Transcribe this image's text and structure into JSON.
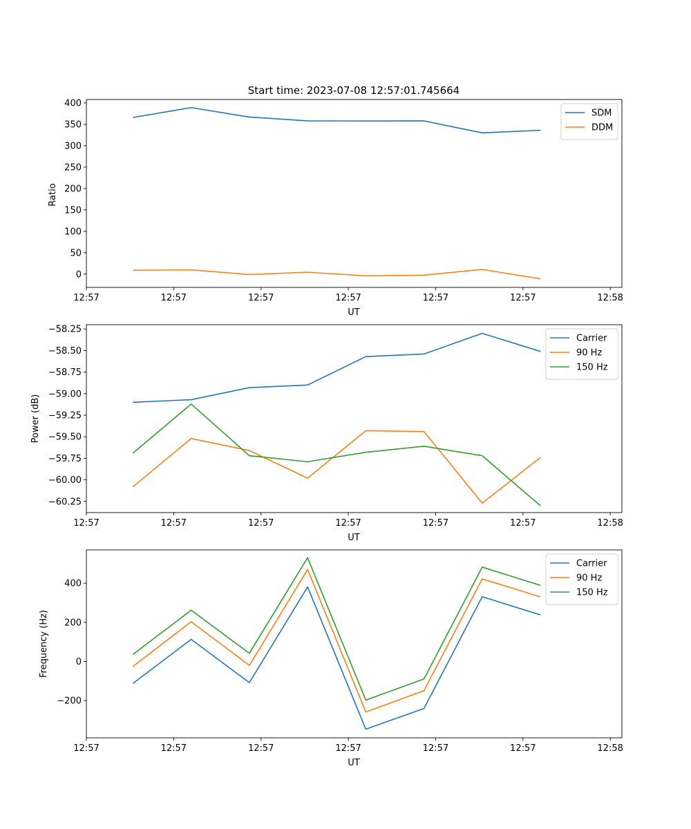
{
  "chart_data": [
    {
      "type": "line",
      "title": "Start time: 2023-07-08 12:57:01.745664",
      "xlabel": "UT",
      "ylabel": "Ratio",
      "x": [
        1,
        2,
        3,
        4,
        5,
        6,
        7,
        8
      ],
      "xlim": [
        0.2,
        9.4
      ],
      "x_ticks": [
        0.2,
        1.7,
        3.2,
        4.7,
        6.2,
        7.7,
        9.2
      ],
      "x_tick_labels": [
        "12:57",
        "12:57",
        "12:57",
        "12:57",
        "12:57",
        "12:57",
        "12:58"
      ],
      "ylim": [
        -31,
        408
      ],
      "y_ticks": [
        0,
        50,
        100,
        150,
        200,
        250,
        300,
        350,
        400
      ],
      "y_tick_labels": [
        "0",
        "50",
        "100",
        "150",
        "200",
        "250",
        "300",
        "350",
        "400"
      ],
      "legend_position": "top-right",
      "series": [
        {
          "name": "SDM",
          "color": "#1f77b4",
          "values": [
            366,
            389,
            367,
            358,
            357.7,
            358,
            330,
            336
          ]
        },
        {
          "name": "DDM",
          "color": "#ff7f0e",
          "values": [
            9,
            10,
            -1,
            4.5,
            -4,
            -2.5,
            11,
            -11
          ]
        }
      ]
    },
    {
      "type": "line",
      "title": "",
      "xlabel": "UT",
      "ylabel": "Power (dB)",
      "x": [
        1,
        2,
        3,
        4,
        5,
        6,
        7,
        8
      ],
      "xlim": [
        0.2,
        9.4
      ],
      "x_ticks": [
        0.2,
        1.7,
        3.2,
        4.7,
        6.2,
        7.7,
        9.2
      ],
      "x_tick_labels": [
        "12:57",
        "12:57",
        "12:57",
        "12:57",
        "12:57",
        "12:57",
        "12:58"
      ],
      "ylim": [
        -60.38,
        -58.2
      ],
      "y_ticks": [
        -60.25,
        -60.0,
        -59.75,
        -59.5,
        -59.25,
        -59.0,
        -58.75,
        -58.5,
        -58.25
      ],
      "y_tick_labels": [
        "−60.25",
        "−60.00",
        "−59.75",
        "−59.50",
        "−59.25",
        "−59.00",
        "−58.75",
        "−58.50",
        "−58.25"
      ],
      "legend_position": "top-right",
      "series": [
        {
          "name": "Carrier",
          "color": "#1f77b4",
          "values": [
            -59.1,
            -59.07,
            -58.93,
            -58.9,
            -58.57,
            -58.54,
            -58.3,
            -58.51
          ]
        },
        {
          "name": "90 Hz",
          "color": "#ff7f0e",
          "values": [
            -60.08,
            -59.52,
            -59.66,
            -59.98,
            -59.43,
            -59.44,
            -60.27,
            -59.74
          ]
        },
        {
          "name": "150 Hz",
          "color": "#2ca02c",
          "values": [
            -59.69,
            -59.12,
            -59.72,
            -59.79,
            -59.68,
            -59.61,
            -59.72,
            -60.3
          ]
        }
      ]
    },
    {
      "type": "line",
      "title": "",
      "xlabel": "UT",
      "ylabel": "Frequency (Hz)",
      "x": [
        1,
        2,
        3,
        4,
        5,
        6,
        7,
        8
      ],
      "xlim": [
        0.2,
        9.4
      ],
      "x_ticks": [
        0.2,
        1.7,
        3.2,
        4.7,
        6.2,
        7.7,
        9.2
      ],
      "x_tick_labels": [
        "12:57",
        "12:57",
        "12:57",
        "12:57",
        "12:57",
        "12:57",
        "12:58"
      ],
      "ylim": [
        -390,
        570
      ],
      "y_ticks": [
        -200,
        0,
        200,
        400
      ],
      "y_tick_labels": [
        "−200",
        "0",
        "200",
        "400"
      ],
      "legend_position": "top-right",
      "series": [
        {
          "name": "Carrier",
          "color": "#1f77b4",
          "values": [
            -112,
            113,
            -108,
            381,
            -346,
            -240,
            331,
            238
          ]
        },
        {
          "name": "90 Hz",
          "color": "#ff7f0e",
          "values": [
            -25,
            203,
            -20,
            470,
            -258,
            -149,
            422,
            330
          ]
        },
        {
          "name": "150 Hz",
          "color": "#2ca02c",
          "values": [
            36,
            262,
            42,
            530,
            -197,
            -89,
            482,
            389
          ]
        }
      ]
    }
  ]
}
